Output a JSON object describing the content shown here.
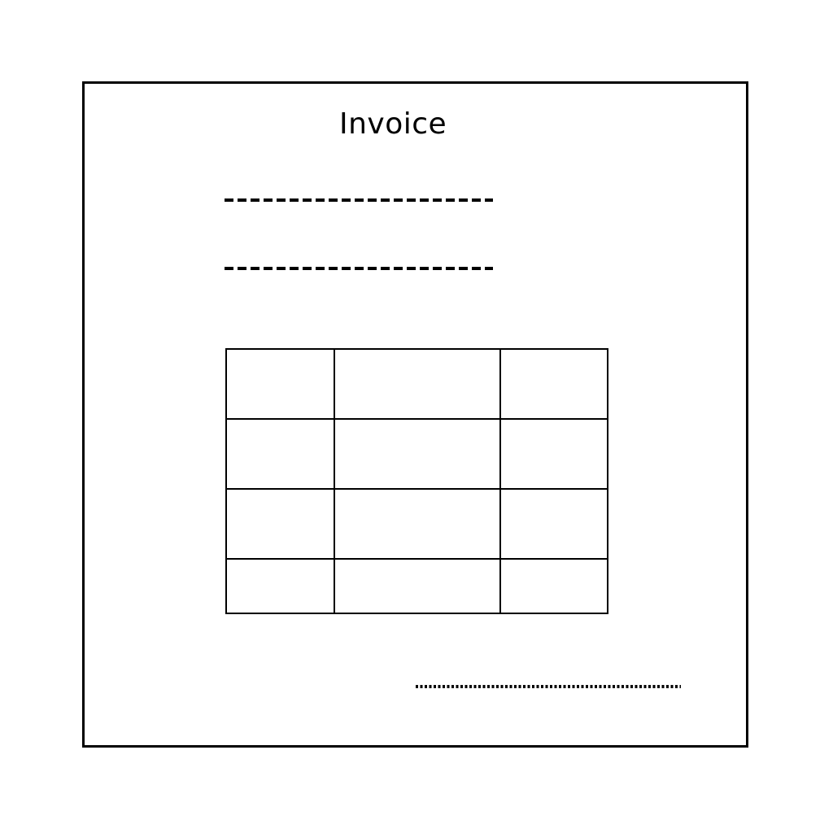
{
  "document": {
    "title": "Invoice",
    "fields": [
      {
        "name": "line-1",
        "style": "dashed",
        "value": ""
      },
      {
        "name": "line-2",
        "style": "dashed",
        "value": ""
      }
    ],
    "table": {
      "rows": [
        [
          "",
          "",
          ""
        ],
        [
          "",
          "",
          ""
        ],
        [
          "",
          "",
          ""
        ],
        [
          "",
          "",
          ""
        ]
      ]
    },
    "signature": {
      "style": "dotted",
      "value": ""
    }
  }
}
